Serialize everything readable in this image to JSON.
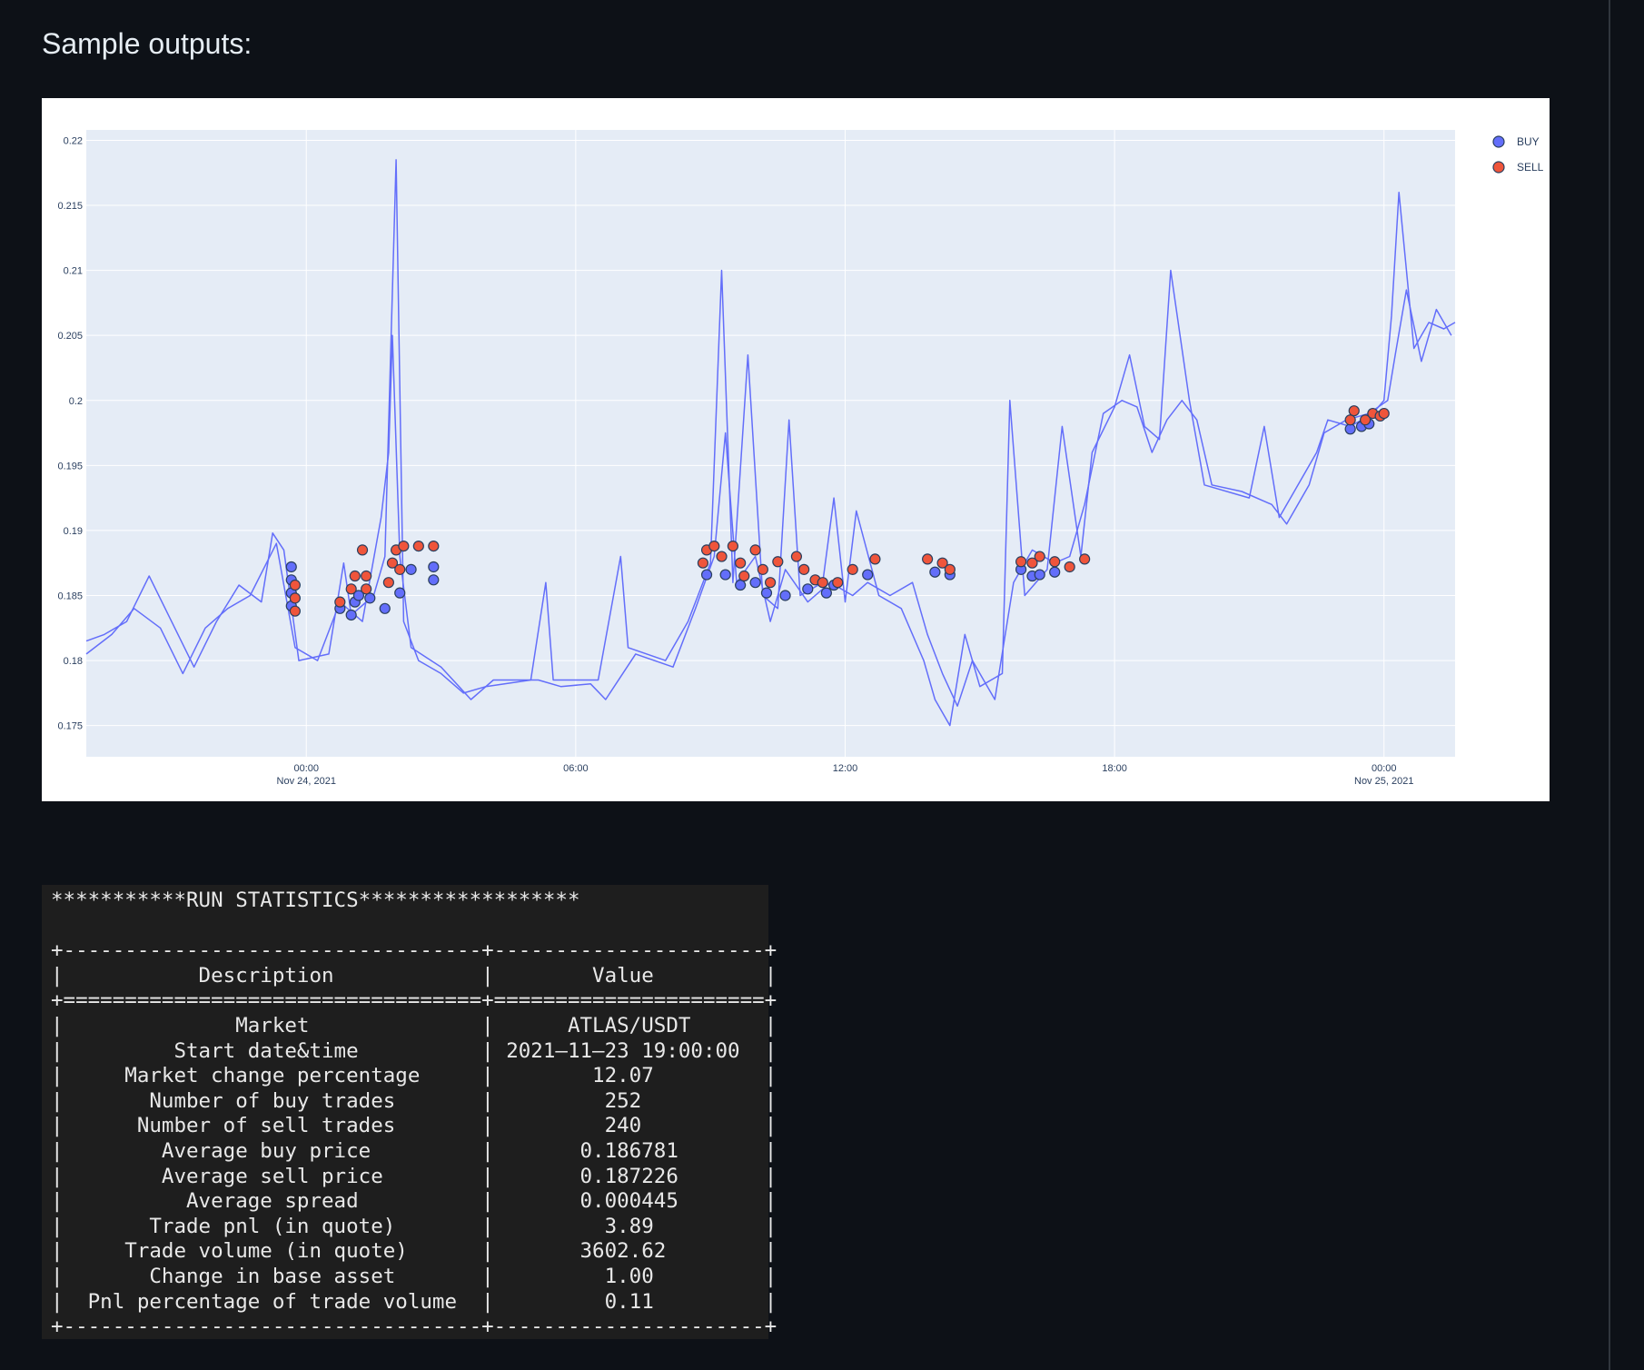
{
  "heading": "Sample outputs:",
  "chart_data": {
    "type": "line",
    "x_axis": {
      "type": "date",
      "range": [
        "2021-11-23 19:06",
        "2021-11-25 01:35"
      ],
      "ticks": [
        {
          "t": "2021-11-24 00:00",
          "label": "00:00",
          "sub": "Nov 24, 2021"
        },
        {
          "t": "2021-11-24 06:00",
          "label": "06:00",
          "sub": ""
        },
        {
          "t": "2021-11-24 12:00",
          "label": "12:00",
          "sub": ""
        },
        {
          "t": "2021-11-24 18:00",
          "label": "18:00",
          "sub": ""
        },
        {
          "t": "2021-11-25 00:00",
          "label": "00:00",
          "sub": "Nov 25, 2021"
        }
      ]
    },
    "y_axis": {
      "range": [
        0.1726,
        0.2208
      ],
      "ticks": [
        {
          "v": 0.22,
          "label": "0.22"
        },
        {
          "v": 0.215,
          "label": "0.215"
        },
        {
          "v": 0.21,
          "label": "0.21"
        },
        {
          "v": 0.205,
          "label": "0.205"
        },
        {
          "v": 0.2,
          "label": "0.2"
        },
        {
          "v": 0.195,
          "label": "0.195"
        },
        {
          "v": 0.19,
          "label": "0.19"
        },
        {
          "v": 0.185,
          "label": "0.185"
        },
        {
          "v": 0.18,
          "label": "0.18"
        },
        {
          "v": 0.175,
          "label": "0.175"
        }
      ]
    },
    "grid": true,
    "legend": {
      "position": "top-right",
      "items": [
        {
          "name": "BUY",
          "color": "#636efa"
        },
        {
          "name": "SELL",
          "color": "#ef553b"
        }
      ]
    },
    "line_color": "#636efa",
    "price_lines": [
      [
        [
          "2021-11-23 19:06",
          0.1815
        ],
        [
          "2021-11-23 19:30",
          0.182
        ],
        [
          "2021-11-23 20:00",
          0.183
        ],
        [
          "2021-11-23 20:30",
          0.1865
        ],
        [
          "2021-11-23 21:00",
          0.183
        ],
        [
          "2021-11-23 21:30",
          0.1795
        ],
        [
          "2021-11-23 22:00",
          0.183
        ],
        [
          "2021-11-23 22:30",
          0.1858
        ],
        [
          "2021-11-23 23:00",
          0.1845
        ],
        [
          "2021-11-23 23:15",
          0.1898
        ],
        [
          "2021-11-23 23:30",
          0.1885
        ],
        [
          "2021-11-23 23:50",
          0.18
        ],
        [
          "2021-11-24 00:30",
          0.1805
        ],
        [
          "2021-11-24 00:50",
          0.1875
        ],
        [
          "2021-11-24 01:00",
          0.1835
        ],
        [
          "2021-11-24 01:30",
          0.185
        ],
        [
          "2021-11-24 01:45",
          0.188
        ],
        [
          "2021-11-24 02:00",
          0.2185
        ],
        [
          "2021-11-24 02:10",
          0.183
        ],
        [
          "2021-11-24 02:30",
          0.18
        ],
        [
          "2021-11-24 03:00",
          0.179
        ],
        [
          "2021-11-24 03:30",
          0.1775
        ],
        [
          "2021-11-24 04:00",
          0.178
        ],
        [
          "2021-11-24 05:00",
          0.1785
        ],
        [
          "2021-11-24 05:20",
          0.186
        ],
        [
          "2021-11-24 05:30",
          0.1785
        ],
        [
          "2021-11-24 06:30",
          0.1785
        ],
        [
          "2021-11-24 07:00",
          0.188
        ],
        [
          "2021-11-24 07:10",
          0.181
        ],
        [
          "2021-11-24 08:00",
          0.18
        ],
        [
          "2021-11-24 08:30",
          0.183
        ],
        [
          "2021-11-24 09:00",
          0.1875
        ],
        [
          "2021-11-24 09:15",
          0.21
        ],
        [
          "2021-11-24 09:30",
          0.186
        ],
        [
          "2021-11-24 09:50",
          0.2035
        ],
        [
          "2021-11-24 10:10",
          0.185
        ],
        [
          "2021-11-24 10:30",
          0.184
        ],
        [
          "2021-11-24 10:45",
          0.1985
        ],
        [
          "2021-11-24 11:00",
          0.185
        ],
        [
          "2021-11-24 11:30",
          0.186
        ],
        [
          "2021-11-24 11:45",
          0.1925
        ],
        [
          "2021-11-24 12:00",
          0.1845
        ],
        [
          "2021-11-24 12:15",
          0.1915
        ],
        [
          "2021-11-24 12:45",
          0.185
        ],
        [
          "2021-11-24 13:15",
          0.184
        ],
        [
          "2021-11-24 13:45",
          0.18
        ],
        [
          "2021-11-24 14:00",
          0.177
        ],
        [
          "2021-11-24 14:20",
          0.175
        ],
        [
          "2021-11-24 14:40",
          0.182
        ],
        [
          "2021-11-24 15:00",
          0.178
        ],
        [
          "2021-11-24 15:30",
          0.179
        ],
        [
          "2021-11-24 15:40",
          0.2
        ],
        [
          "2021-11-24 16:00",
          0.185
        ],
        [
          "2021-11-24 16:30",
          0.187
        ],
        [
          "2021-11-24 16:50",
          0.198
        ],
        [
          "2021-11-24 17:15",
          0.188
        ],
        [
          "2021-11-24 17:30",
          0.196
        ],
        [
          "2021-11-24 18:00",
          0.1995
        ],
        [
          "2021-11-24 18:20",
          0.2035
        ],
        [
          "2021-11-24 18:40",
          0.198
        ],
        [
          "2021-11-24 19:00",
          0.197
        ],
        [
          "2021-11-24 19:15",
          0.21
        ],
        [
          "2021-11-24 19:40",
          0.2
        ],
        [
          "2021-11-24 20:00",
          0.1935
        ],
        [
          "2021-11-24 21:00",
          0.1925
        ],
        [
          "2021-11-24 21:20",
          0.198
        ],
        [
          "2021-11-24 21:40",
          0.191
        ],
        [
          "2021-11-24 22:00",
          0.193
        ],
        [
          "2021-11-24 22:30",
          0.196
        ],
        [
          "2021-11-24 22:45",
          0.1985
        ],
        [
          "2021-11-24 23:15",
          0.198
        ],
        [
          "2021-11-24 23:45",
          0.199
        ],
        [
          "2021-11-25 00:00",
          0.2
        ],
        [
          "2021-11-25 00:10",
          0.2065
        ],
        [
          "2021-11-25 00:20",
          0.216
        ],
        [
          "2021-11-25 00:40",
          0.204
        ],
        [
          "2021-11-25 01:00",
          0.206
        ],
        [
          "2021-11-25 01:20",
          0.2055
        ],
        [
          "2021-11-25 01:35",
          0.206
        ]
      ],
      [
        [
          "2021-11-23 19:06",
          0.1805
        ],
        [
          "2021-11-23 19:40",
          0.182
        ],
        [
          "2021-11-23 20:10",
          0.184
        ],
        [
          "2021-11-23 20:45",
          0.1825
        ],
        [
          "2021-11-23 21:15",
          0.179
        ],
        [
          "2021-11-23 21:45",
          0.1825
        ],
        [
          "2021-11-23 22:15",
          0.184
        ],
        [
          "2021-11-23 22:45",
          0.185
        ],
        [
          "2021-11-23 23:20",
          0.189
        ],
        [
          "2021-11-23 23:45",
          0.181
        ],
        [
          "2021-11-24 00:15",
          0.18
        ],
        [
          "2021-11-24 00:45",
          0.1845
        ],
        [
          "2021-11-24 01:15",
          0.183
        ],
        [
          "2021-11-24 01:40",
          0.191
        ],
        [
          "2021-11-24 01:50",
          0.196
        ],
        [
          "2021-11-24 01:55",
          0.205
        ],
        [
          "2021-11-24 02:05",
          0.188
        ],
        [
          "2021-11-24 02:20",
          0.181
        ],
        [
          "2021-11-24 03:00",
          0.1795
        ],
        [
          "2021-11-24 03:40",
          0.177
        ],
        [
          "2021-11-24 04:10",
          0.1785
        ],
        [
          "2021-11-24 05:10",
          0.1785
        ],
        [
          "2021-11-24 05:40",
          0.178
        ],
        [
          "2021-11-24 06:20",
          0.1782
        ],
        [
          "2021-11-24 06:40",
          0.177
        ],
        [
          "2021-11-24 07:20",
          0.1805
        ],
        [
          "2021-11-24 08:10",
          0.1795
        ],
        [
          "2021-11-24 08:40",
          0.184
        ],
        [
          "2021-11-24 09:05",
          0.188
        ],
        [
          "2021-11-24 09:20",
          0.1975
        ],
        [
          "2021-11-24 09:35",
          0.186
        ],
        [
          "2021-11-24 10:00",
          0.188
        ],
        [
          "2021-11-24 10:20",
          0.183
        ],
        [
          "2021-11-24 10:40",
          0.187
        ],
        [
          "2021-11-24 11:10",
          0.1845
        ],
        [
          "2021-11-24 11:40",
          0.186
        ],
        [
          "2021-11-24 12:10",
          0.185
        ],
        [
          "2021-11-24 12:30",
          0.186
        ],
        [
          "2021-11-24 13:00",
          0.185
        ],
        [
          "2021-11-24 13:30",
          0.186
        ],
        [
          "2021-11-24 13:50",
          0.182
        ],
        [
          "2021-11-24 14:10",
          0.179
        ],
        [
          "2021-11-24 14:30",
          0.1765
        ],
        [
          "2021-11-24 14:50",
          0.18
        ],
        [
          "2021-11-24 15:20",
          0.177
        ],
        [
          "2021-11-24 15:45",
          0.186
        ],
        [
          "2021-11-24 16:10",
          0.1885
        ],
        [
          "2021-11-24 16:40",
          0.1875
        ],
        [
          "2021-11-24 17:00",
          0.188
        ],
        [
          "2021-11-24 17:20",
          0.192
        ],
        [
          "2021-11-24 17:45",
          0.199
        ],
        [
          "2021-11-24 18:10",
          0.2
        ],
        [
          "2021-11-24 18:30",
          0.1995
        ],
        [
          "2021-11-24 18:50",
          0.196
        ],
        [
          "2021-11-24 19:10",
          0.1985
        ],
        [
          "2021-11-24 19:30",
          0.2
        ],
        [
          "2021-11-24 19:50",
          0.1985
        ],
        [
          "2021-11-24 20:10",
          0.1935
        ],
        [
          "2021-11-24 20:50",
          0.193
        ],
        [
          "2021-11-24 21:30",
          0.192
        ],
        [
          "2021-11-24 21:50",
          0.1905
        ],
        [
          "2021-11-24 22:20",
          0.1935
        ],
        [
          "2021-11-24 22:40",
          0.1975
        ],
        [
          "2021-11-24 23:10",
          0.1985
        ],
        [
          "2021-11-24 23:40",
          0.199
        ],
        [
          "2021-11-25 00:05",
          0.2
        ],
        [
          "2021-11-25 00:15",
          0.2035
        ],
        [
          "2021-11-25 00:30",
          0.2085
        ],
        [
          "2021-11-25 00:50",
          0.203
        ],
        [
          "2021-11-25 01:10",
          0.207
        ],
        [
          "2021-11-25 01:30",
          0.205
        ]
      ]
    ],
    "buy_trades": [
      [
        "2021-11-23 23:40",
        0.1872
      ],
      [
        "2021-11-23 23:40",
        0.1862
      ],
      [
        "2021-11-23 23:40",
        0.1852
      ],
      [
        "2021-11-23 23:40",
        0.1842
      ],
      [
        "2021-11-24 00:45",
        0.184
      ],
      [
        "2021-11-24 01:00",
        0.1835
      ],
      [
        "2021-11-24 01:05",
        0.1845
      ],
      [
        "2021-11-24 01:10",
        0.185
      ],
      [
        "2021-11-24 01:25",
        0.1848
      ],
      [
        "2021-11-24 01:45",
        0.184
      ],
      [
        "2021-11-24 02:05",
        0.1852
      ],
      [
        "2021-11-24 02:20",
        0.187
      ],
      [
        "2021-11-24 02:50",
        0.1872
      ],
      [
        "2021-11-24 02:50",
        0.1862
      ],
      [
        "2021-11-24 08:55",
        0.1866
      ],
      [
        "2021-11-24 09:20",
        0.1866
      ],
      [
        "2021-11-24 09:40",
        0.1858
      ],
      [
        "2021-11-24 10:00",
        0.186
      ],
      [
        "2021-11-24 10:15",
        0.1852
      ],
      [
        "2021-11-24 10:40",
        0.185
      ],
      [
        "2021-11-24 11:10",
        0.1855
      ],
      [
        "2021-11-24 11:35",
        0.1852
      ],
      [
        "2021-11-24 11:45",
        0.1858
      ],
      [
        "2021-11-24 12:30",
        0.1866
      ],
      [
        "2021-11-24 14:00",
        0.1868
      ],
      [
        "2021-11-24 14:20",
        0.1866
      ],
      [
        "2021-11-24 15:55",
        0.187
      ],
      [
        "2021-11-24 16:10",
        0.1865
      ],
      [
        "2021-11-24 16:20",
        0.1866
      ],
      [
        "2021-11-24 16:40",
        0.1868
      ],
      [
        "2021-11-24 23:15",
        0.1978
      ],
      [
        "2021-11-24 23:30",
        0.198
      ],
      [
        "2021-11-24 23:40",
        0.1982
      ]
    ],
    "sell_trades": [
      [
        "2021-11-23 23:45",
        0.1858
      ],
      [
        "2021-11-23 23:45",
        0.1848
      ],
      [
        "2021-11-23 23:45",
        0.1838
      ],
      [
        "2021-11-24 00:45",
        0.1845
      ],
      [
        "2021-11-24 01:00",
        0.1855
      ],
      [
        "2021-11-24 01:05",
        0.1865
      ],
      [
        "2021-11-24 01:15",
        0.1885
      ],
      [
        "2021-11-24 01:20",
        0.1865
      ],
      [
        "2021-11-24 01:20",
        0.1855
      ],
      [
        "2021-11-24 01:50",
        0.186
      ],
      [
        "2021-11-24 01:55",
        0.1875
      ],
      [
        "2021-11-24 02:00",
        0.1885
      ],
      [
        "2021-11-24 02:05",
        0.187
      ],
      [
        "2021-11-24 02:10",
        0.1888
      ],
      [
        "2021-11-24 02:30",
        0.1888
      ],
      [
        "2021-11-24 02:50",
        0.1888
      ],
      [
        "2021-11-24 08:50",
        0.1875
      ],
      [
        "2021-11-24 08:55",
        0.1885
      ],
      [
        "2021-11-24 09:05",
        0.1888
      ],
      [
        "2021-11-24 09:15",
        0.188
      ],
      [
        "2021-11-24 09:30",
        0.1888
      ],
      [
        "2021-11-24 09:40",
        0.1875
      ],
      [
        "2021-11-24 09:45",
        0.1865
      ],
      [
        "2021-11-24 10:00",
        0.1885
      ],
      [
        "2021-11-24 10:10",
        0.187
      ],
      [
        "2021-11-24 10:20",
        0.186
      ],
      [
        "2021-11-24 10:30",
        0.1876
      ],
      [
        "2021-11-24 10:55",
        0.188
      ],
      [
        "2021-11-24 11:05",
        0.187
      ],
      [
        "2021-11-24 11:20",
        0.1862
      ],
      [
        "2021-11-24 11:30",
        0.186
      ],
      [
        "2021-11-24 11:50",
        0.186
      ],
      [
        "2021-11-24 12:10",
        0.187
      ],
      [
        "2021-11-24 12:40",
        0.1878
      ],
      [
        "2021-11-24 13:50",
        0.1878
      ],
      [
        "2021-11-24 14:10",
        0.1875
      ],
      [
        "2021-11-24 14:20",
        0.187
      ],
      [
        "2021-11-24 15:55",
        0.1876
      ],
      [
        "2021-11-24 16:10",
        0.1875
      ],
      [
        "2021-11-24 16:20",
        0.188
      ],
      [
        "2021-11-24 16:40",
        0.1876
      ],
      [
        "2021-11-24 17:00",
        0.1872
      ],
      [
        "2021-11-24 17:20",
        0.1878
      ],
      [
        "2021-11-24 23:15",
        0.1985
      ],
      [
        "2021-11-24 23:20",
        0.1992
      ],
      [
        "2021-11-24 23:35",
        0.1985
      ],
      [
        "2021-11-24 23:45",
        0.199
      ],
      [
        "2021-11-24 23:55",
        0.1988
      ],
      [
        "2021-11-25 00:00",
        0.199
      ]
    ]
  },
  "stats": {
    "banner": "***********RUN STATISTICS******************",
    "header": {
      "description": "Description",
      "value": "Value"
    },
    "rows": [
      {
        "description": "Market",
        "value": "ATLAS/USDT"
      },
      {
        "description": "Start date&time",
        "value": "2021–11–23 19:00:00"
      },
      {
        "description": "Market change percentage",
        "value": "12.07"
      },
      {
        "description": "Number of buy trades",
        "value": "252"
      },
      {
        "description": "Number of sell trades",
        "value": "240"
      },
      {
        "description": "Average buy price",
        "value": "0.186781"
      },
      {
        "description": "Average sell price",
        "value": "0.187226"
      },
      {
        "description": "Average spread",
        "value": "0.000445"
      },
      {
        "description": "Trade pnl (in quote)",
        "value": "3.89"
      },
      {
        "description": "Trade volume (in quote)",
        "value": "3602.62"
      },
      {
        "description": "Change in base asset",
        "value": "1.00"
      },
      {
        "description": "Pnl percentage of trade volume",
        "value": "0.11"
      }
    ]
  }
}
